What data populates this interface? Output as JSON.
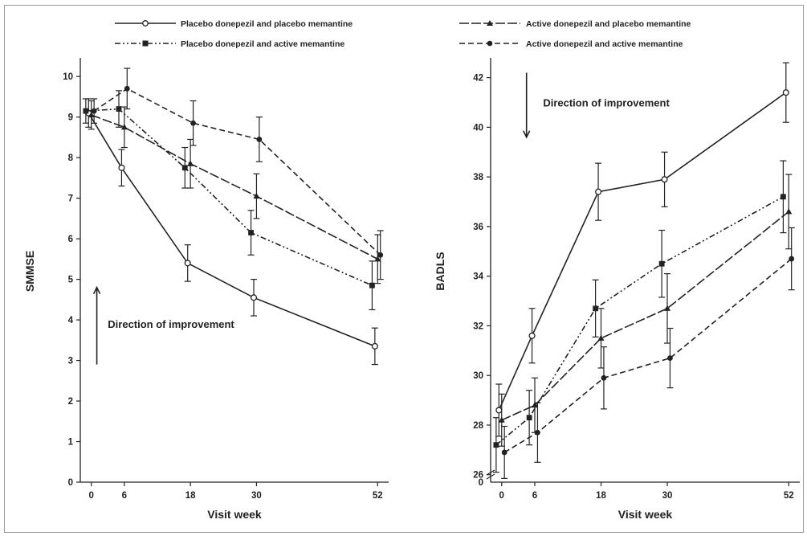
{
  "legend": {
    "items": [
      {
        "label": "Placebo donepezil and placebo memantine",
        "dash": "",
        "marker": "circle"
      },
      {
        "label": "Active donepezil and placebo memantine",
        "dash": "12,3",
        "marker": "triangle"
      },
      {
        "label": "Placebo donepezil and active memantine",
        "dash": "7,3,2,3,2,3",
        "marker": "square"
      },
      {
        "label": "Active donepezil and active memantine",
        "dash": "7,4",
        "marker": "dot"
      }
    ]
  },
  "chart_data": [
    {
      "type": "line",
      "title": "",
      "xlabel": "Visit week",
      "ylabel": "SMMSE",
      "x_ticks": [
        0,
        6,
        18,
        30,
        52
      ],
      "y_ticks": [
        0,
        1,
        2,
        3,
        4,
        5,
        6,
        7,
        8,
        9,
        10
      ],
      "xlim": [
        -2,
        54
      ],
      "ylim": [
        0,
        10.4
      ],
      "annotation": {
        "text": "Direction of improvement",
        "arrow": "up",
        "arrow_x": 1,
        "arrow_y_from": 2.9,
        "arrow_y_to": 4.8,
        "text_x": 3,
        "text_y": 3.9
      },
      "series": [
        {
          "name": "Placebo donepezil and placebo memantine",
          "x": [
            -0.5,
            5.5,
            17.5,
            29.5,
            51.5
          ],
          "y": [
            9.1,
            7.75,
            5.4,
            4.55,
            3.35
          ],
          "err": [
            0.35,
            0.45,
            0.45,
            0.45,
            0.45
          ]
        },
        {
          "name": "Active donepezil and placebo memantine",
          "x": [
            0,
            6,
            18,
            30,
            52
          ],
          "y": [
            9.05,
            8.75,
            7.85,
            7.05,
            5.5
          ],
          "err": [
            0.35,
            0.5,
            0.6,
            0.55,
            0.6
          ]
        },
        {
          "name": "Placebo donepezil and active memantine",
          "x": [
            -1,
            5,
            17,
            29,
            51
          ],
          "y": [
            9.15,
            9.2,
            7.75,
            6.15,
            4.85
          ],
          "err": [
            0.3,
            0.45,
            0.5,
            0.55,
            0.6
          ]
        },
        {
          "name": "Active donepezil and active memantine",
          "x": [
            0.5,
            6.5,
            18.5,
            30.5,
            52.5
          ],
          "y": [
            9.15,
            9.7,
            8.85,
            8.45,
            5.6
          ],
          "err": [
            0.3,
            0.5,
            0.55,
            0.55,
            0.6
          ]
        }
      ]
    },
    {
      "type": "line",
      "title": "",
      "xlabel": "Visit week",
      "ylabel": "BADLS",
      "x_ticks": [
        0,
        6,
        18,
        30,
        52
      ],
      "y_ticks": [
        26,
        28,
        30,
        32,
        34,
        36,
        38,
        40,
        42
      ],
      "y_origin_label": "0",
      "y_break": true,
      "xlim": [
        -2,
        54
      ],
      "ylim": [
        25.7,
        42.7
      ],
      "annotation": {
        "text": "Direction of improvement",
        "arrow": "down",
        "arrow_x": 4.5,
        "arrow_y_from": 42.2,
        "arrow_y_to": 39.6,
        "text_x": 7.5,
        "text_y": 41.0
      },
      "series": [
        {
          "name": "Placebo donepezil and placebo memantine",
          "x": [
            -0.5,
            5.5,
            17.5,
            29.5,
            51.5
          ],
          "y": [
            28.6,
            31.6,
            37.4,
            37.9,
            41.4
          ],
          "err": [
            1.05,
            1.1,
            1.15,
            1.1,
            1.2
          ]
        },
        {
          "name": "Active donepezil and placebo memantine",
          "x": [
            0,
            6,
            18,
            30,
            52
          ],
          "y": [
            28.2,
            28.8,
            31.5,
            32.7,
            36.6
          ],
          "err": [
            1.05,
            1.1,
            1.2,
            1.4,
            1.5
          ]
        },
        {
          "name": "Placebo donepezil and active memantine",
          "x": [
            -1,
            5,
            17,
            29,
            51
          ],
          "y": [
            27.2,
            28.3,
            32.7,
            34.5,
            37.2
          ],
          "err": [
            1.1,
            1.1,
            1.15,
            1.35,
            1.45
          ]
        },
        {
          "name": "Active donepezil and active memantine",
          "x": [
            0.5,
            6.5,
            18.5,
            30.5,
            52.5
          ],
          "y": [
            26.9,
            27.7,
            29.9,
            30.7,
            34.7
          ],
          "err": [
            1.05,
            1.2,
            1.25,
            1.2,
            1.25
          ]
        }
      ]
    }
  ]
}
